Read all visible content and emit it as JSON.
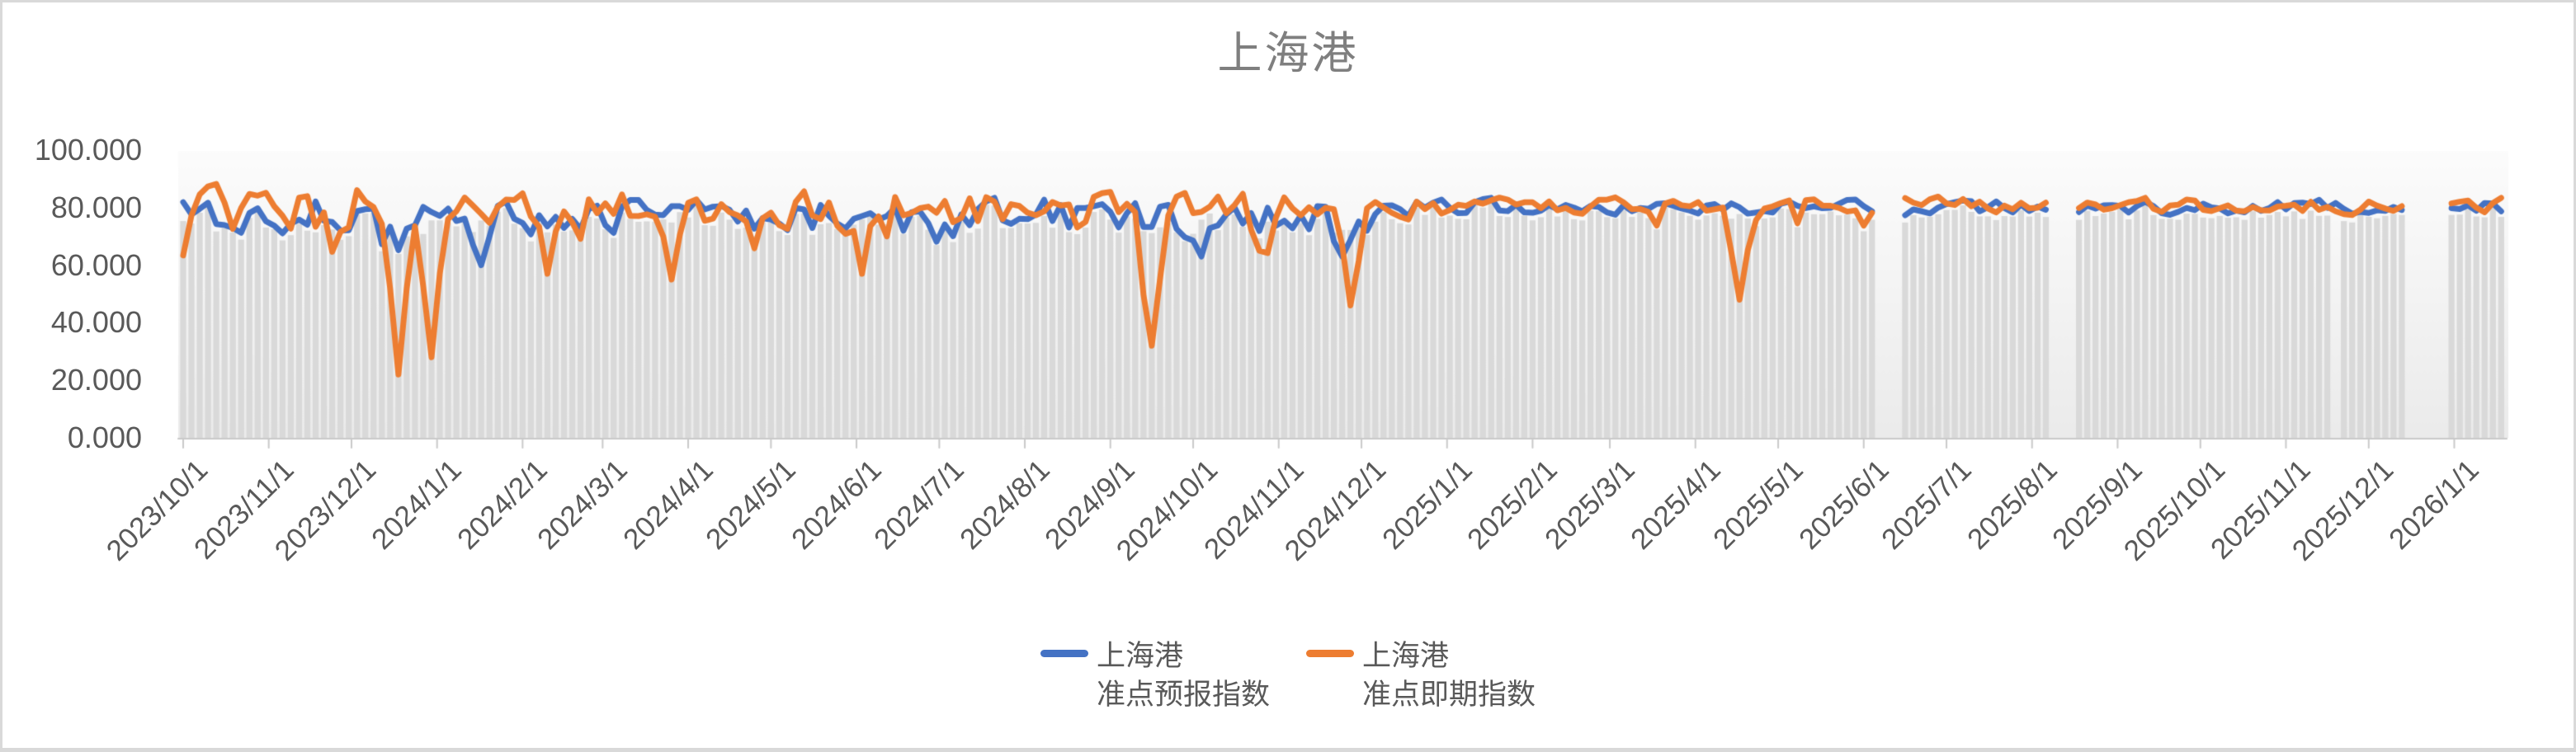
{
  "title": "上海港",
  "chart_data": {
    "type": "line",
    "title": "上海港",
    "x_start": "2023/10/1",
    "x_end": "2026/1/20",
    "point_interval_days": 3,
    "ylim": [
      0,
      100
    ],
    "y_tick_labels": [
      "0.000",
      "20.000",
      "40.000",
      "60.000",
      "80.000",
      "100.000"
    ],
    "x_tick_labels": [
      "2023/10/1",
      "2023/11/1",
      "2023/12/1",
      "2024/1/1",
      "2024/2/1",
      "2024/3/1",
      "2024/4/1",
      "2024/5/1",
      "2024/6/1",
      "2024/7/1",
      "2024/8/1",
      "2024/9/1",
      "2024/10/1",
      "2024/11/1",
      "2024/12/1",
      "2025/1/1",
      "2025/2/1",
      "2025/3/1",
      "2025/4/1",
      "2025/5/1",
      "2025/6/1",
      "2025/7/1",
      "2025/8/1",
      "2025/9/1",
      "2025/10/1",
      "2025/11/1",
      "2025/12/1",
      "2026/1/1"
    ],
    "grid": false,
    "legend_position": "bottom",
    "background_bars": {
      "color": "#D9D9D9"
    },
    "series": [
      {
        "name_lines": [
          "上海港",
          "准点预报指数"
        ],
        "color": "#4472C4",
        "baseline_early": 76.5,
        "baseline_late": 80.1,
        "amplitude_early": 7.5,
        "amplitude_late": 2.8,
        "anomalies": [
          {
            "date": "2024/1/17",
            "value": 60
          },
          {
            "date": "2024/10/4",
            "value": 63
          },
          {
            "date": "2024/11/24",
            "value": 63
          }
        ]
      },
      {
        "name_lines": [
          "上海港",
          "准点即期指数"
        ],
        "color": "#ED7D31",
        "baseline_early": 80.0,
        "baseline_late": 80.8,
        "amplitude_early": 7.5,
        "amplitude_late": 3.0,
        "anomalies": [
          {
            "date": "2023/12/17",
            "value": 22
          },
          {
            "date": "2023/12/29",
            "value": 28
          },
          {
            "date": "2024/2/9",
            "value": 57
          },
          {
            "date": "2024/3/27",
            "value": 55
          },
          {
            "date": "2024/6/3",
            "value": 57
          },
          {
            "date": "2024/9/15",
            "value": 32
          },
          {
            "date": "2024/10/25",
            "value": 65
          },
          {
            "date": "2024/11/27",
            "value": 46
          },
          {
            "date": "2025/4/16",
            "value": 48
          }
        ]
      }
    ],
    "data_gaps": [
      {
        "from": "2025/6/6",
        "to": "2025/6/13"
      },
      {
        "from": "2025/8/8",
        "to": "2025/8/15"
      },
      {
        "from": "2025/11/19",
        "to": "2025/11/21",
        "bars_only": true
      },
      {
        "from": "2025/12/15",
        "to": "2025/12/28"
      }
    ]
  },
  "colors": {
    "series_forecast": "#4472C4",
    "series_spot": "#ED7D31",
    "bars": "#D9D9D9",
    "axis_line": "#C9C9C9",
    "tick_label": "#595959",
    "title": "#7F7F7F",
    "frame_border": "#D9D9D9",
    "plot_bg_top": "#FCFCFC",
    "plot_bg_bottom": "#EBEBEB"
  }
}
